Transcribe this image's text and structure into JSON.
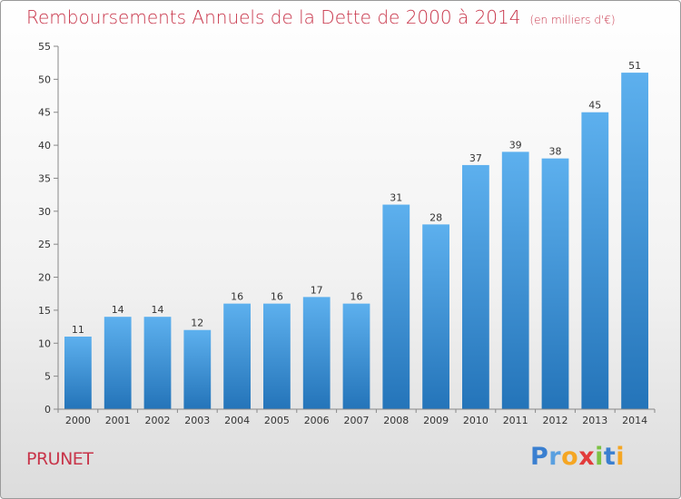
{
  "chart_data": {
    "type": "bar",
    "title": "Remboursements Annuels de la Dette de 2000 à 2014",
    "subtitle": "(en milliers d'€)",
    "categories": [
      "2000",
      "2001",
      "2002",
      "2003",
      "2004",
      "2005",
      "2006",
      "2007",
      "2008",
      "2009",
      "2010",
      "2011",
      "2012",
      "2013",
      "2014"
    ],
    "values": [
      11,
      14,
      14,
      12,
      16,
      16,
      17,
      16,
      31,
      28,
      37,
      39,
      38,
      45,
      51
    ],
    "ylim": [
      0,
      55
    ],
    "yticks": [
      0,
      5,
      10,
      15,
      20,
      25,
      30,
      35,
      40,
      45,
      50,
      55
    ],
    "grid": false,
    "bar_color": "#3b8fd6"
  },
  "commune": "PRUNET",
  "logo": {
    "letters": [
      "P",
      "r",
      "o",
      "x",
      "i",
      "t",
      "i"
    ],
    "colors": [
      "#3a7fd0",
      "#5aa0e0",
      "#f5a623",
      "#e23b3b",
      "#7cc243",
      "#3a7fd0",
      "#f5a623"
    ]
  }
}
